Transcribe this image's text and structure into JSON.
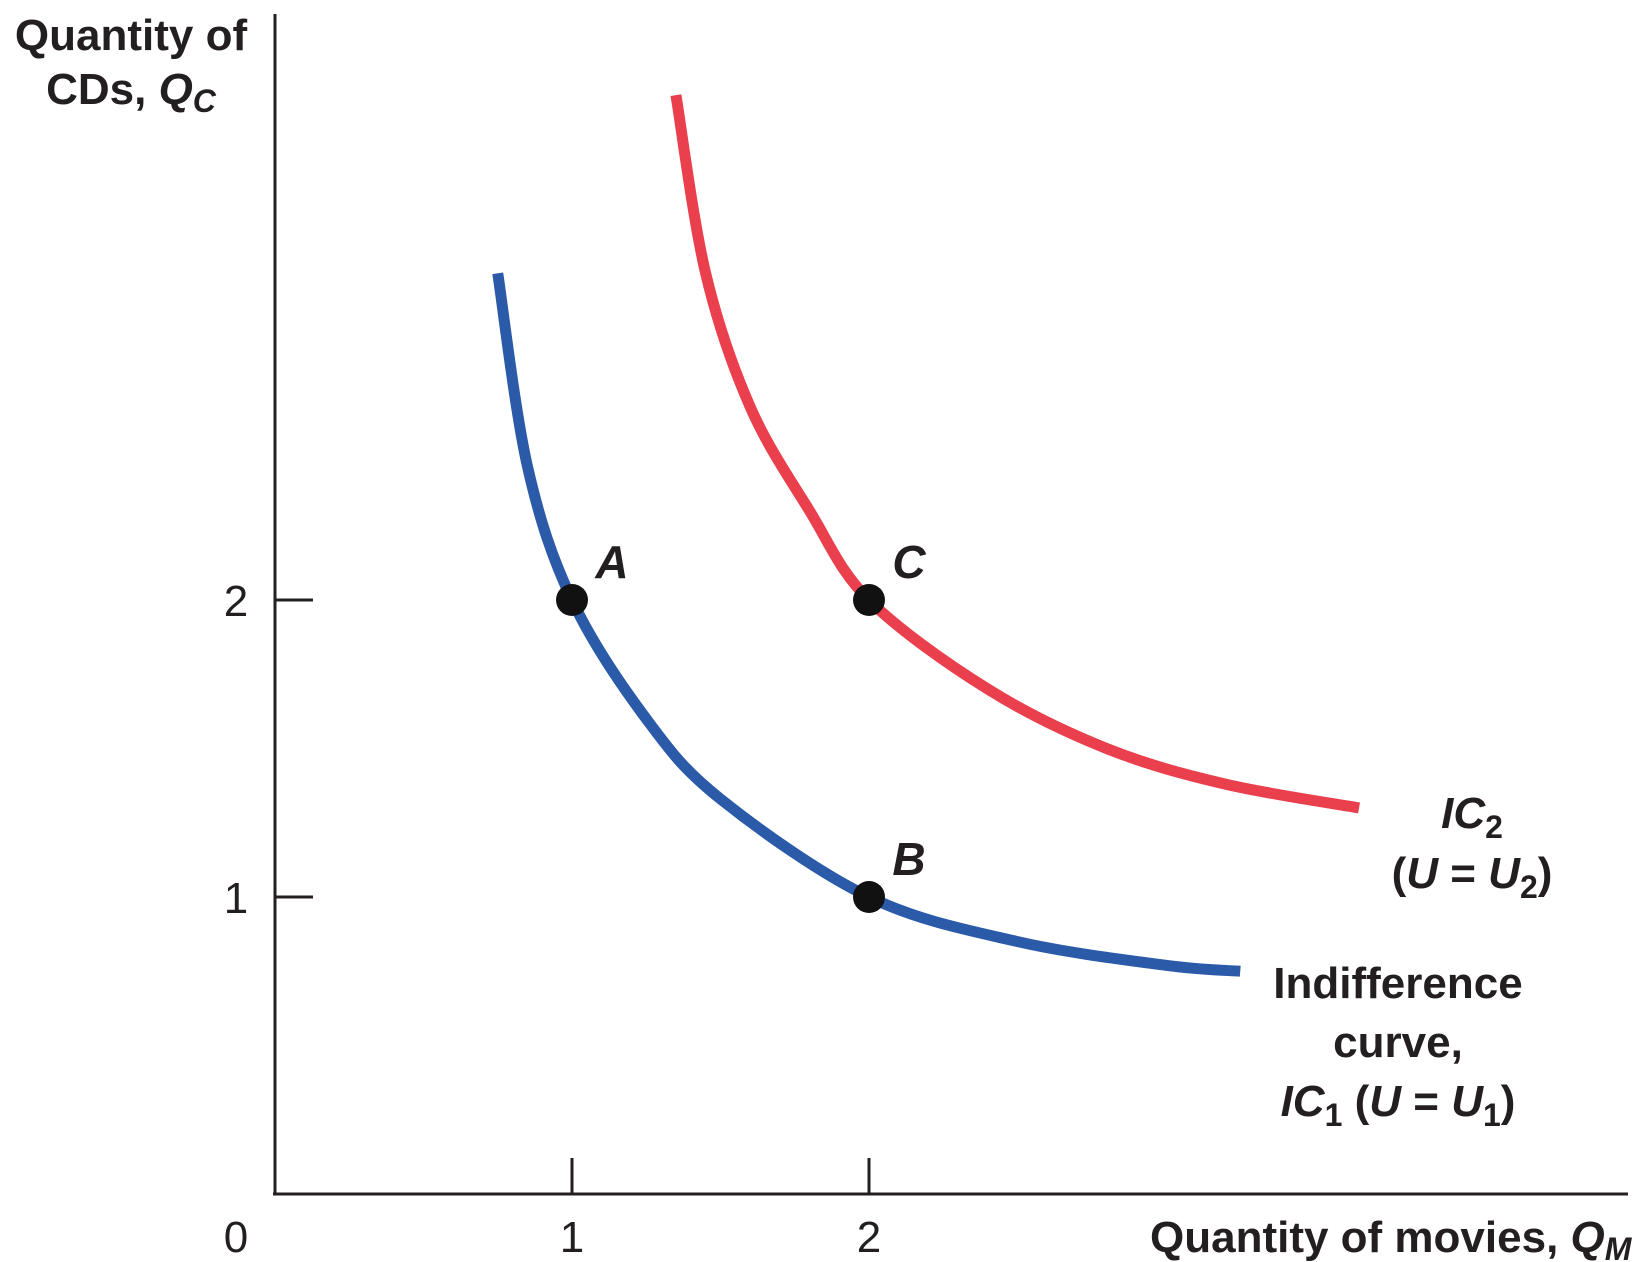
{
  "chart_data": {
    "type": "line",
    "y_title_line1": "Quantity of",
    "y_title_line2": "CDs,",
    "y_var": "Q",
    "y_var_sub": "C",
    "x_title": "Quantity of movies,",
    "x_var": "Q",
    "x_var_sub": "M",
    "origin_label": "0",
    "x_ticks": [
      1,
      2
    ],
    "x_tick_labels": [
      "1",
      "2"
    ],
    "y_ticks": [
      1,
      2
    ],
    "y_tick_labels": [
      "1",
      "2"
    ],
    "xlim": [
      0,
      4.5
    ],
    "ylim": [
      0,
      4.0
    ],
    "grid": false,
    "series": [
      {
        "name": "IC1",
        "color": "#2b5aa8",
        "x": [
          0.75,
          0.85,
          1.0,
          1.25,
          1.5,
          2.0,
          2.5,
          3.0,
          3.25
        ],
        "y": [
          3.1,
          2.45,
          2.0,
          1.6,
          1.33,
          1.0,
          0.85,
          0.77,
          0.75
        ]
      },
      {
        "name": "IC2",
        "color": "#ea3f4d",
        "x": [
          1.35,
          1.45,
          1.6,
          1.8,
          2.0,
          2.4,
          2.8,
          3.2,
          3.65
        ],
        "y": [
          3.7,
          3.1,
          2.65,
          2.3,
          2.0,
          1.7,
          1.5,
          1.38,
          1.3
        ]
      }
    ],
    "points": [
      {
        "label": "A",
        "x": 1,
        "y": 2
      },
      {
        "label": "C",
        "x": 2,
        "y": 2
      },
      {
        "label": "B",
        "x": 2,
        "y": 1
      }
    ],
    "annotations": {
      "ic2_line1": "IC",
      "ic2_line1_sub": "2",
      "ic2_line2_a": "(",
      "ic2_line2_u": "U",
      "ic2_line2_eq": " = ",
      "ic2_line2_u2": "U",
      "ic2_line2_sub": "2",
      "ic2_line2_b": ")",
      "ic1_line1": "Indifference",
      "ic1_line2": "curve,",
      "ic1_line3_ic": "IC",
      "ic1_line3_sub": "1",
      "ic1_line3_a": " (",
      "ic1_line3_u": "U",
      "ic1_line3_eq": " = ",
      "ic1_line3_u2": "U",
      "ic1_line3_sub2": "1",
      "ic1_line3_b": ")"
    }
  }
}
